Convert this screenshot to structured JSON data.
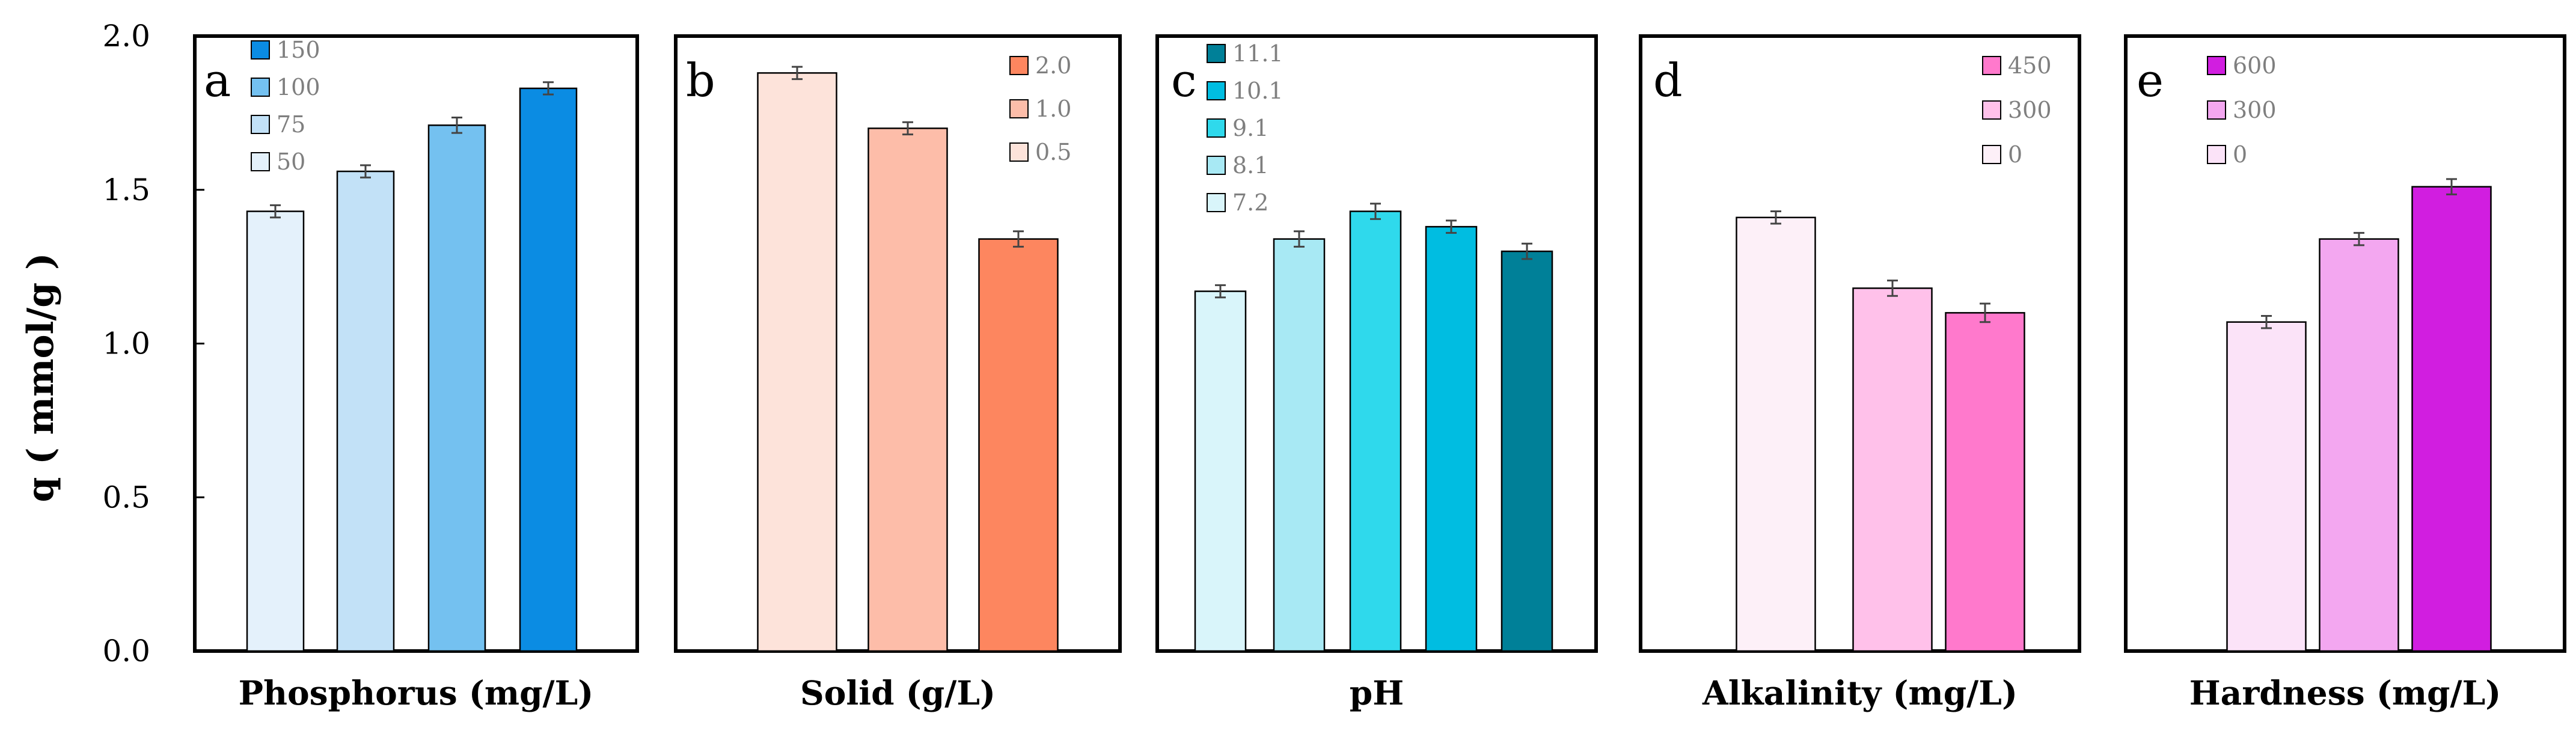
{
  "ylabel": "q ( mmol/g )",
  "yticks": [
    "0.0",
    "0.5",
    "1.0",
    "1.5",
    "2.0"
  ],
  "chart_data": [
    {
      "type": "bar",
      "panel": "a",
      "xlabel": "Phosphorus (mg/L)",
      "categories": [
        "50",
        "75",
        "100",
        "150"
      ],
      "values": [
        1.43,
        1.56,
        1.71,
        1.83
      ],
      "errors": [
        0.02,
        0.02,
        0.025,
        0.02
      ],
      "colors": [
        "#e4f1fb",
        "#c2e1f7",
        "#74c1f0",
        "#0b8ce3"
      ],
      "legend": [
        "150",
        "100",
        "75",
        "50"
      ],
      "ylim": [
        0,
        2.0
      ]
    },
    {
      "type": "bar",
      "panel": "b",
      "xlabel": "Solid (g/L)",
      "categories": [
        "0.5",
        "1.0",
        "2.0"
      ],
      "values": [
        1.88,
        1.7,
        1.34
      ],
      "errors": [
        0.02,
        0.02,
        0.025
      ],
      "colors": [
        "#fde3da",
        "#fdbda9",
        "#fd865f"
      ],
      "legend": [
        "2.0",
        "1.0",
        "0.5"
      ],
      "ylim": [
        0,
        2.0
      ]
    },
    {
      "type": "bar",
      "panel": "c",
      "xlabel": "pH",
      "categories": [
        "7.2",
        "8.1",
        "9.1",
        "10.1",
        "11.1"
      ],
      "values": [
        1.17,
        1.34,
        1.43,
        1.38,
        1.3
      ],
      "errors": [
        0.02,
        0.025,
        0.025,
        0.02,
        0.025
      ],
      "colors": [
        "#d9f5fa",
        "#a8e9f4",
        "#2fd9ec",
        "#00bde1",
        "#008098"
      ],
      "legend": [
        "11.1",
        "10.1",
        "9.1",
        "8.1",
        "7.2"
      ],
      "ylim": [
        0,
        2.0
      ]
    },
    {
      "type": "bar",
      "panel": "d",
      "xlabel": "Alkalinity (mg/L)",
      "categories": [
        "0",
        "300",
        "450"
      ],
      "values": [
        1.41,
        1.18,
        1.1
      ],
      "errors": [
        0.02,
        0.025,
        0.03
      ],
      "colors": [
        "#fdf0f8",
        "#ffc1ea",
        "#ff79cc"
      ],
      "legend": [
        "450",
        "300",
        "0"
      ],
      "ylim": [
        0,
        2.0
      ]
    },
    {
      "type": "bar",
      "panel": "e",
      "xlabel": "Hardness (mg/L)",
      "categories": [
        "0",
        "300",
        "600"
      ],
      "values": [
        1.07,
        1.34,
        1.51
      ],
      "errors": [
        0.02,
        0.02,
        0.025
      ],
      "colors": [
        "#fbe3f8",
        "#f3a7f0",
        "#d11ee0"
      ],
      "legend": [
        "600",
        "300",
        "0"
      ],
      "ylim": [
        0,
        2.0
      ]
    }
  ]
}
